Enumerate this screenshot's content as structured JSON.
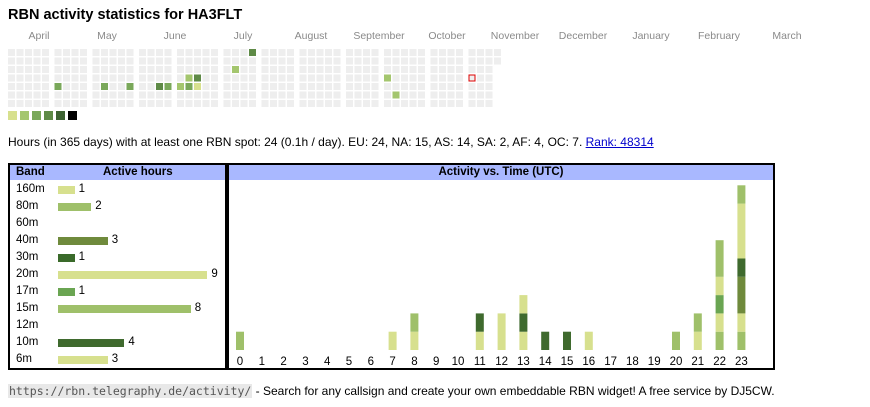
{
  "title": "RBN activity statistics for HA3FLT",
  "calendar": {
    "months": [
      "April",
      "May",
      "June",
      "July",
      "August",
      "September",
      "October",
      "November",
      "December",
      "January",
      "February",
      "March"
    ],
    "active_cells": [
      {
        "week": 5,
        "day": 4,
        "level": 2
      },
      {
        "week": 10,
        "day": 4,
        "level": 2
      },
      {
        "week": 13,
        "day": 4,
        "level": 2
      },
      {
        "week": 17,
        "day": 4,
        "level": 2
      },
      {
        "week": 18,
        "day": 4,
        "level": 1
      },
      {
        "week": 16,
        "day": 4,
        "level": 3
      },
      {
        "week": 19,
        "day": 4,
        "level": 2
      },
      {
        "week": 19,
        "day": 3,
        "level": 1
      },
      {
        "week": 20,
        "day": 3,
        "level": 3
      },
      {
        "week": 20,
        "day": 4,
        "level": 0
      },
      {
        "week": 24,
        "day": 2,
        "level": 1
      },
      {
        "week": 26,
        "day": 0,
        "level": 3
      },
      {
        "week": 40,
        "day": 3,
        "level": 1
      },
      {
        "week": 41,
        "day": 5,
        "level": 1
      }
    ],
    "today_marker": {
      "week": 49,
      "day": 3
    },
    "legend_levels": [
      "#d7e08e",
      "#a4c66e",
      "#7aa85a",
      "#5e8a46",
      "#3d6232",
      "#000000"
    ]
  },
  "stats": {
    "text": "Hours (in 365 days) with at least one RBN spot: 24 (0.1h / day). EU: 24, NA: 15, AS: 14, SA: 2, AF: 4, OC: 7.",
    "rank_link": "Rank: 48314"
  },
  "band_table": {
    "header_band": "Band",
    "header_hours": "Active hours",
    "rows": [
      {
        "band": "160m",
        "hours": "1",
        "value": 1,
        "color": "#d7e08e"
      },
      {
        "band": "80m",
        "hours": "2",
        "value": 2,
        "color": "#9fc06a"
      },
      {
        "band": "60m",
        "hours": "",
        "value": 0,
        "color": "#cccccc"
      },
      {
        "band": "40m",
        "hours": "3",
        "value": 3,
        "color": "#6f8a3c"
      },
      {
        "band": "30m",
        "hours": "1",
        "value": 1,
        "color": "#3a6a2a"
      },
      {
        "band": "20m",
        "hours": "9",
        "value": 9,
        "color": "#d7e08e"
      },
      {
        "band": "17m",
        "hours": "1",
        "value": 1,
        "color": "#6aa552"
      },
      {
        "band": "15m",
        "hours": "8",
        "value": 8,
        "color": "#9fc06a"
      },
      {
        "band": "12m",
        "hours": "",
        "value": 0,
        "color": "#cccccc"
      },
      {
        "band": "10m",
        "hours": "4",
        "value": 4,
        "color": "#3f6a2e"
      },
      {
        "band": "6m",
        "hours": "3",
        "value": 3,
        "color": "#d7e08e"
      }
    ]
  },
  "chart_data": {
    "type": "bar",
    "title": "Activity vs. Time (UTC)",
    "categories": [
      "0",
      "1",
      "2",
      "3",
      "4",
      "5",
      "6",
      "7",
      "8",
      "9",
      "10",
      "11",
      "12",
      "13",
      "14",
      "15",
      "16",
      "17",
      "18",
      "19",
      "20",
      "21",
      "22",
      "23"
    ],
    "stacks": [
      [
        {
          "color": "#9fc06a",
          "value": 1
        }
      ],
      [],
      [],
      [],
      [],
      [],
      [],
      [
        {
          "color": "#d7e08e",
          "value": 1
        }
      ],
      [
        {
          "color": "#d7e08e",
          "value": 1
        },
        {
          "color": "#9fc06a",
          "value": 1
        }
      ],
      [],
      [],
      [
        {
          "color": "#d7e08e",
          "value": 1
        },
        {
          "color": "#3f6a2e",
          "value": 1
        }
      ],
      [
        {
          "color": "#d7e08e",
          "value": 2
        }
      ],
      [
        {
          "color": "#d7e08e",
          "value": 1
        },
        {
          "color": "#3f6a2e",
          "value": 1
        },
        {
          "color": "#d7e08e",
          "value": 1
        }
      ],
      [
        {
          "color": "#3f6a2e",
          "value": 1
        }
      ],
      [
        {
          "color": "#3f6a2e",
          "value": 1
        }
      ],
      [
        {
          "color": "#d7e08e",
          "value": 1
        }
      ],
      [],
      [],
      [],
      [
        {
          "color": "#9fc06a",
          "value": 1
        }
      ],
      [
        {
          "color": "#d7e08e",
          "value": 1
        },
        {
          "color": "#9fc06a",
          "value": 1
        }
      ],
      [
        {
          "color": "#9fc06a",
          "value": 1
        },
        {
          "color": "#d7e08e",
          "value": 1
        },
        {
          "color": "#6aa552",
          "value": 1
        },
        {
          "color": "#d7e08e",
          "value": 1
        },
        {
          "color": "#9fc06a",
          "value": 2
        }
      ],
      [
        {
          "color": "#9fc06a",
          "value": 1
        },
        {
          "color": "#d7e08e",
          "value": 1
        },
        {
          "color": "#6f8a3c",
          "value": 2
        },
        {
          "color": "#3f6a2e",
          "value": 1
        },
        {
          "color": "#d7e08e",
          "value": 3
        },
        {
          "color": "#9fc06a",
          "value": 1
        }
      ]
    ],
    "ylim": [
      0,
      9
    ]
  },
  "footer": {
    "url": "https://rbn.telegraphy.de/activity/",
    "text": " - Search for any callsign and create your own embeddable RBN widget! A free service by DJ5CW."
  }
}
